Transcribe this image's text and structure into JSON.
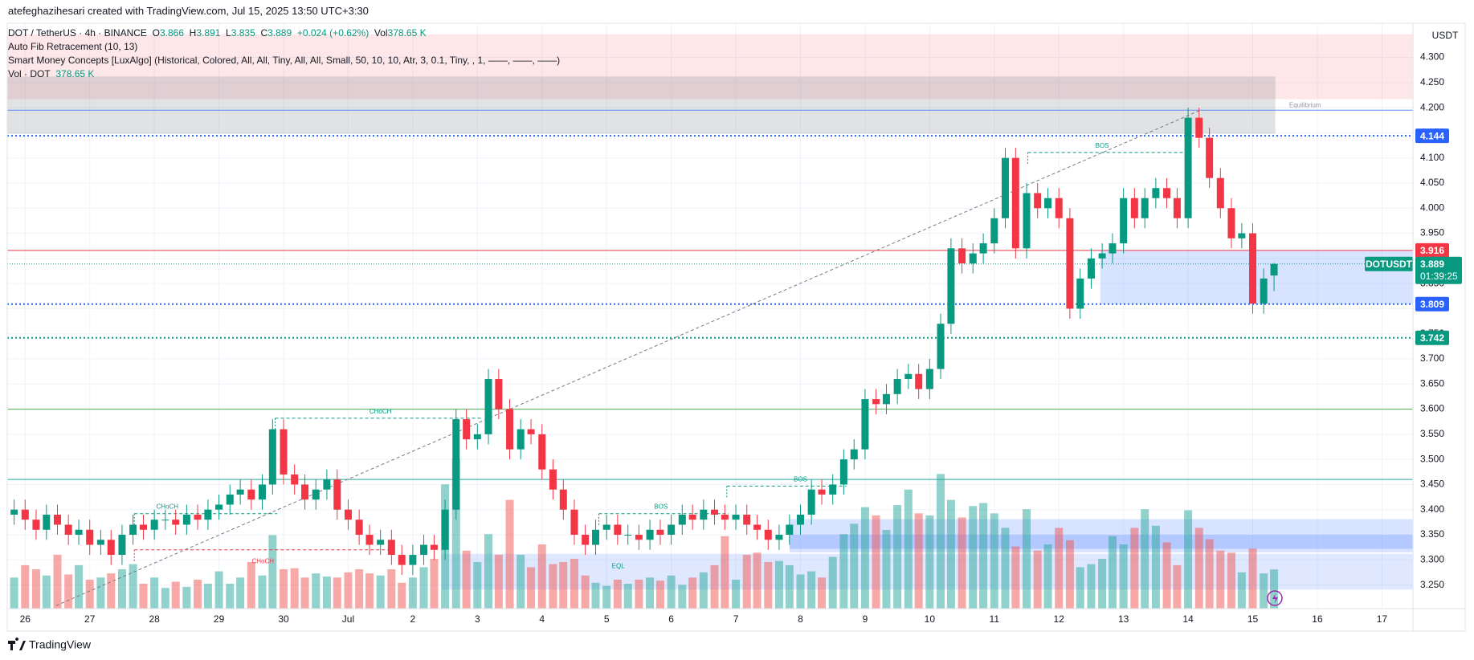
{
  "header": {
    "credit": "atefeghazihesari created with TradingView.com, Jul 15, 2025 13:50 UTC+3:30",
    "symbol": "DOT / TetherUS · 4h · BINANCE",
    "ohlc": [
      {
        "key": "O",
        "value": "3.866"
      },
      {
        "key": "H",
        "value": "3.891"
      },
      {
        "key": "L",
        "value": "3.835"
      },
      {
        "key": "C",
        "value": "3.889"
      }
    ],
    "change": "+0.024 (+0.62%)",
    "vol_key": "Vol",
    "vol_value": "378.65 K",
    "indicators": [
      "Auto Fib Retracement (10, 13)",
      "Smart Money Concepts [LuxAlgo] (Historical, Colored, All, All, Tiny, All, All, Small, 50, 10, 10, Atr, 3, 0.1, Tiny, , 1, ——, ——, ——)"
    ],
    "vol_line_name": "Vol · DOT",
    "vol_line_value": "378.65 K",
    "currency": "USDT",
    "brand": "TradingView"
  },
  "chart_data": {
    "type": "candlestick",
    "up_color": "#089981",
    "down_color": "#f23645",
    "grid": true,
    "xlim": [
      -0.277,
      21.48
    ],
    "ylim": [
      3.203,
      4.368
    ],
    "xticks": [
      {
        "value": 0,
        "label": "26"
      },
      {
        "value": 1,
        "label": "27"
      },
      {
        "value": 2,
        "label": "28"
      },
      {
        "value": 3,
        "label": "29"
      },
      {
        "value": 4,
        "label": "30"
      },
      {
        "value": 5,
        "label": "Jul"
      },
      {
        "value": 6,
        "label": "2"
      },
      {
        "value": 7,
        "label": "3"
      },
      {
        "value": 8,
        "label": "4"
      },
      {
        "value": 9,
        "label": "5"
      },
      {
        "value": 10,
        "label": "6"
      },
      {
        "value": 11,
        "label": "7"
      },
      {
        "value": 12,
        "label": "8"
      },
      {
        "value": 13,
        "label": "9"
      },
      {
        "value": 14,
        "label": "10"
      },
      {
        "value": 15,
        "label": "11"
      },
      {
        "value": 16,
        "label": "12"
      },
      {
        "value": 17,
        "label": "13"
      },
      {
        "value": 18,
        "label": "14"
      },
      {
        "value": 19,
        "label": "15"
      },
      {
        "value": 20,
        "label": "16"
      },
      {
        "value": 21,
        "label": "17"
      }
    ],
    "yticks": [
      {
        "value": 3.25,
        "label": "3.250"
      },
      {
        "value": 3.3,
        "label": "3.300"
      },
      {
        "value": 3.35,
        "label": "3.350"
      },
      {
        "value": 3.4,
        "label": "3.400"
      },
      {
        "value": 3.45,
        "label": "3.450"
      },
      {
        "value": 3.5,
        "label": "3.500"
      },
      {
        "value": 3.55,
        "label": "3.550"
      },
      {
        "value": 3.6,
        "label": "3.600"
      },
      {
        "value": 3.65,
        "label": "3.650"
      },
      {
        "value": 3.7,
        "label": "3.700"
      },
      {
        "value": 3.75,
        "label": "3.750"
      },
      {
        "value": 3.8,
        "label": "3.800"
      },
      {
        "value": 3.85,
        "label": "3.850"
      },
      {
        "value": 3.9,
        "label": "3.900"
      },
      {
        "value": 3.95,
        "label": "3.950"
      },
      {
        "value": 4.0,
        "label": "4.000"
      },
      {
        "value": 4.05,
        "label": "4.050"
      },
      {
        "value": 4.1,
        "label": "4.100"
      },
      {
        "value": 4.15,
        "label": "4.150"
      },
      {
        "value": 4.2,
        "label": "4.200"
      },
      {
        "value": 4.25,
        "label": "4.250"
      },
      {
        "value": 4.3,
        "label": "4.300"
      }
    ],
    "x": [
      -0.17,
      0,
      0.17,
      0.33,
      0.5,
      0.67,
      0.83,
      1,
      1.17,
      1.33,
      1.5,
      1.67,
      1.83,
      2,
      2.17,
      2.33,
      2.5,
      2.67,
      2.83,
      3,
      3.17,
      3.33,
      3.5,
      3.67,
      3.83,
      4,
      4.17,
      4.33,
      4.5,
      4.67,
      4.83,
      5,
      5.17,
      5.33,
      5.5,
      5.67,
      5.83,
      6,
      6.17,
      6.33,
      6.5,
      6.67,
      6.83,
      7,
      7.17,
      7.33,
      7.5,
      7.67,
      7.83,
      8,
      8.17,
      8.33,
      8.5,
      8.67,
      8.83,
      9,
      9.17,
      9.33,
      9.5,
      9.67,
      9.83,
      10,
      10.17,
      10.33,
      10.5,
      10.67,
      10.83,
      11,
      11.17,
      11.33,
      11.5,
      11.67,
      11.83,
      12,
      12.17,
      12.33,
      12.5,
      12.67,
      12.83,
      13,
      13.17,
      13.33,
      13.5,
      13.67,
      13.83,
      14,
      14.17,
      14.33,
      14.5,
      14.67,
      14.83,
      15,
      15.17,
      15.33,
      15.5,
      15.67,
      15.83,
      16,
      16.17,
      16.33,
      16.5,
      16.67,
      16.83,
      17,
      17.17,
      17.33,
      17.5,
      17.67,
      17.83,
      18,
      18.17,
      18.33,
      18.5,
      18.67,
      18.83,
      19,
      19.17,
      19.33
    ],
    "open": [
      3.39,
      3.4,
      3.38,
      3.36,
      3.39,
      3.37,
      3.35,
      3.36,
      3.33,
      3.34,
      3.31,
      3.35,
      3.37,
      3.36,
      3.38,
      3.38,
      3.37,
      3.39,
      3.38,
      3.4,
      3.41,
      3.43,
      3.44,
      3.42,
      3.45,
      3.56,
      3.47,
      3.45,
      3.42,
      3.44,
      3.46,
      3.4,
      3.38,
      3.35,
      3.33,
      3.34,
      3.31,
      3.29,
      3.31,
      3.33,
      3.32,
      3.4,
      3.58,
      3.54,
      3.55,
      3.66,
      3.6,
      3.52,
      3.56,
      3.55,
      3.48,
      3.44,
      3.4,
      3.35,
      3.33,
      3.36,
      3.37,
      3.35,
      3.35,
      3.34,
      3.36,
      3.35,
      3.37,
      3.39,
      3.38,
      3.4,
      3.39,
      3.38,
      3.39,
      3.37,
      3.36,
      3.34,
      3.35,
      3.37,
      3.39,
      3.44,
      3.43,
      3.45,
      3.5,
      3.52,
      3.62,
      3.61,
      3.63,
      3.66,
      3.67,
      3.64,
      3.68,
      3.77,
      3.92,
      3.89,
      3.91,
      3.93,
      3.98,
      4.1,
      3.92,
      4.03,
      4.0,
      4.02,
      3.98,
      3.8,
      3.86,
      3.9,
      3.91,
      3.93,
      4.02,
      3.98,
      4.02,
      4.04,
      4.02,
      3.98,
      4.18,
      4.14,
      4.06,
      4.0,
      3.94,
      3.95,
      3.81,
      3.866
    ],
    "high": [
      3.42,
      3.42,
      3.4,
      3.41,
      3.41,
      3.39,
      3.38,
      3.38,
      3.36,
      3.36,
      3.37,
      3.39,
      3.39,
      3.4,
      3.4,
      3.4,
      3.41,
      3.41,
      3.42,
      3.43,
      3.45,
      3.46,
      3.46,
      3.47,
      3.58,
      3.58,
      3.49,
      3.47,
      3.46,
      3.48,
      3.48,
      3.42,
      3.4,
      3.37,
      3.36,
      3.36,
      3.33,
      3.33,
      3.35,
      3.35,
      3.42,
      3.6,
      3.6,
      3.57,
      3.68,
      3.68,
      3.62,
      3.58,
      3.58,
      3.57,
      3.5,
      3.46,
      3.42,
      3.37,
      3.38,
      3.39,
      3.39,
      3.37,
      3.37,
      3.38,
      3.38,
      3.39,
      3.41,
      3.41,
      3.42,
      3.42,
      3.41,
      3.41,
      3.41,
      3.39,
      3.38,
      3.37,
      3.39,
      3.41,
      3.46,
      3.46,
      3.47,
      3.52,
      3.54,
      3.64,
      3.64,
      3.65,
      3.68,
      3.69,
      3.69,
      3.7,
      3.79,
      3.94,
      3.94,
      3.93,
      3.95,
      4.0,
      4.12,
      4.12,
      4.05,
      4.05,
      4.04,
      4.04,
      4.0,
      3.88,
      3.92,
      3.93,
      3.95,
      4.04,
      4.04,
      4.04,
      4.06,
      4.06,
      4.04,
      4.2,
      4.2,
      4.16,
      4.08,
      4.02,
      3.97,
      3.97,
      3.88,
      3.891
    ],
    "low": [
      3.37,
      3.36,
      3.34,
      3.34,
      3.35,
      3.33,
      3.33,
      3.31,
      3.31,
      3.29,
      3.29,
      3.33,
      3.34,
      3.34,
      3.36,
      3.35,
      3.35,
      3.36,
      3.36,
      3.38,
      3.39,
      3.41,
      3.4,
      3.4,
      3.43,
      3.45,
      3.43,
      3.4,
      3.4,
      3.42,
      3.38,
      3.36,
      3.33,
      3.31,
      3.31,
      3.29,
      3.27,
      3.27,
      3.29,
      3.3,
      3.3,
      3.38,
      3.52,
      3.52,
      3.53,
      3.58,
      3.5,
      3.5,
      3.53,
      3.46,
      3.42,
      3.38,
      3.33,
      3.31,
      3.31,
      3.34,
      3.33,
      3.33,
      3.32,
      3.32,
      3.33,
      3.33,
      3.35,
      3.36,
      3.36,
      3.37,
      3.36,
      3.36,
      3.35,
      3.34,
      3.32,
      3.32,
      3.33,
      3.35,
      3.37,
      3.41,
      3.41,
      3.43,
      3.48,
      3.5,
      3.59,
      3.59,
      3.61,
      3.64,
      3.62,
      3.62,
      3.66,
      3.75,
      3.87,
      3.87,
      3.89,
      3.91,
      3.96,
      3.9,
      3.9,
      3.98,
      3.98,
      3.96,
      3.78,
      3.78,
      3.84,
      3.88,
      3.89,
      3.91,
      3.96,
      3.96,
      4.0,
      4.0,
      3.96,
      3.96,
      4.12,
      4.04,
      3.98,
      3.92,
      3.92,
      3.79,
      3.79,
      3.835
    ],
    "close": [
      3.4,
      3.38,
      3.36,
      3.39,
      3.37,
      3.35,
      3.36,
      3.33,
      3.34,
      3.31,
      3.35,
      3.37,
      3.36,
      3.38,
      3.38,
      3.37,
      3.39,
      3.38,
      3.4,
      3.41,
      3.43,
      3.44,
      3.42,
      3.45,
      3.56,
      3.47,
      3.45,
      3.42,
      3.44,
      3.46,
      3.4,
      3.38,
      3.35,
      3.33,
      3.34,
      3.31,
      3.29,
      3.31,
      3.33,
      3.32,
      3.4,
      3.58,
      3.54,
      3.55,
      3.66,
      3.6,
      3.52,
      3.56,
      3.55,
      3.48,
      3.44,
      3.4,
      3.35,
      3.33,
      3.36,
      3.37,
      3.35,
      3.35,
      3.34,
      3.36,
      3.35,
      3.37,
      3.39,
      3.38,
      3.4,
      3.39,
      3.38,
      3.39,
      3.37,
      3.36,
      3.34,
      3.35,
      3.37,
      3.39,
      3.44,
      3.43,
      3.45,
      3.5,
      3.52,
      3.62,
      3.61,
      3.63,
      3.66,
      3.67,
      3.64,
      3.68,
      3.77,
      3.92,
      3.89,
      3.91,
      3.93,
      3.98,
      4.1,
      3.92,
      4.03,
      4.0,
      4.02,
      3.98,
      3.8,
      3.86,
      3.9,
      3.91,
      3.93,
      4.02,
      3.98,
      4.02,
      4.04,
      4.02,
      3.98,
      4.18,
      4.14,
      4.06,
      4.0,
      3.94,
      3.95,
      3.81,
      3.86,
      3.889
    ],
    "volume": [
      300,
      420,
      380,
      320,
      520,
      330,
      420,
      280,
      300,
      340,
      380,
      430,
      240,
      300,
      200,
      260,
      210,
      280,
      240,
      360,
      240,
      300,
      450,
      320,
      710,
      380,
      390,
      300,
      340,
      310,
      300,
      350,
      380,
      340,
      320,
      380,
      250,
      300,
      400,
      480,
      1200,
      1450,
      560,
      450,
      720,
      520,
      1050,
      520,
      400,
      620,
      430,
      450,
      480,
      320,
      250,
      220,
      280,
      240,
      280,
      300,
      270,
      320,
      230,
      300,
      350,
      420,
      700,
      280,
      520,
      540,
      450,
      460,
      420,
      330,
      360,
      300,
      500,
      720,
      820,
      980,
      900,
      760,
      1000,
      1150,
      920,
      900,
      1300,
      1050,
      880,
      990,
      1020,
      920,
      780,
      600,
      960,
      560,
      620,
      780,
      660,
      400,
      430,
      480,
      700,
      620,
      780,
      960,
      800,
      640,
      420,
      950,
      780,
      670,
      560,
      540,
      350,
      580,
      340,
      378.65
    ],
    "zones": [
      {
        "x0": -0.28,
        "x1": 21.48,
        "y0": 4.217,
        "y1": 4.346,
        "color": "rgba(242,54,69,0.12)"
      },
      {
        "x0": -0.28,
        "x1": 19.35,
        "y0": 4.148,
        "y1": 4.262,
        "color": "rgba(120,123,134,0.22)"
      },
      {
        "x0": 16.64,
        "x1": 21.48,
        "y0": 3.809,
        "y1": 3.916,
        "color": "rgba(41,98,255,0.18)"
      },
      {
        "x0": 6.45,
        "x1": 21.48,
        "y0": 3.241,
        "y1": 3.312,
        "color": "rgba(41,98,255,0.15)"
      },
      {
        "x0": 11.83,
        "x1": 21.48,
        "y0": 3.315,
        "y1": 3.381,
        "color": "rgba(41,98,255,0.18)"
      },
      {
        "x0": 11.83,
        "x1": 21.48,
        "y0": 3.322,
        "y1": 3.35,
        "color": "rgba(41,98,255,0.2)"
      }
    ],
    "levels": [
      {
        "value": 4.195,
        "color": "#5b8def",
        "style": "solid",
        "badge": false
      },
      {
        "value": 4.144,
        "color": "#2962ff",
        "style": "dotted",
        "badge": true
      },
      {
        "value": 3.916,
        "color": "#f23645",
        "style": "solid",
        "badge": true
      },
      {
        "value": 3.809,
        "color": "#2962ff",
        "style": "dotted",
        "badge": true
      },
      {
        "value": 3.742,
        "color": "#089981",
        "style": "dotted",
        "badge": true
      },
      {
        "value": 3.6,
        "color": "#4caf50",
        "style": "solid",
        "badge": false
      },
      {
        "value": 3.46,
        "color": "#26a69a",
        "style": "solid",
        "badge": false
      }
    ],
    "last_price": {
      "value": 3.889,
      "symbol": "DOTUSDT",
      "timer": "01:39:25",
      "color": "#089981"
    },
    "fib_line": {
      "x0": 0.48,
      "y0": 3.209,
      "x1": 18.17,
      "y1": 4.194
    },
    "structures": [
      {
        "x0": 1.69,
        "x1": 3.9,
        "y": 3.392,
        "color": "#089981"
      },
      {
        "x0": 3.87,
        "x1": 7.06,
        "y": 3.582,
        "color": "#089981"
      },
      {
        "x0": 1.69,
        "x1": 5.72,
        "y": 3.32,
        "color": "#f23645"
      },
      {
        "x0": 8.88,
        "x1": 10.89,
        "y": 3.392,
        "color": "#089981"
      },
      {
        "x0": 10.86,
        "x1": 12.71,
        "y": 3.447,
        "color": "#089981"
      },
      {
        "x0": 15.52,
        "x1": 17.95,
        "y": 4.111,
        "color": "#089981"
      }
    ],
    "annotations": [
      {
        "text": "CHoCH",
        "x": 2.2,
        "y": 3.405,
        "color": "#089981"
      },
      {
        "text": "CHoCH",
        "x": 5.5,
        "y": 3.595,
        "color": "#089981"
      },
      {
        "text": "CHoCH",
        "x": 3.68,
        "y": 3.297,
        "color": "#f23645"
      },
      {
        "text": "BOS",
        "x": 9.84,
        "y": 3.405,
        "color": "#089981"
      },
      {
        "text": "BOS",
        "x": 12.0,
        "y": 3.46,
        "color": "#089981"
      },
      {
        "text": "BOS",
        "x": 16.67,
        "y": 4.124,
        "color": "#089981"
      },
      {
        "text": "EQL",
        "x": 9.18,
        "y": 3.287,
        "color": "#089981"
      },
      {
        "text": "Equilibrium",
        "x": 19.81,
        "y": 4.204,
        "color": "#9598a1"
      }
    ]
  }
}
